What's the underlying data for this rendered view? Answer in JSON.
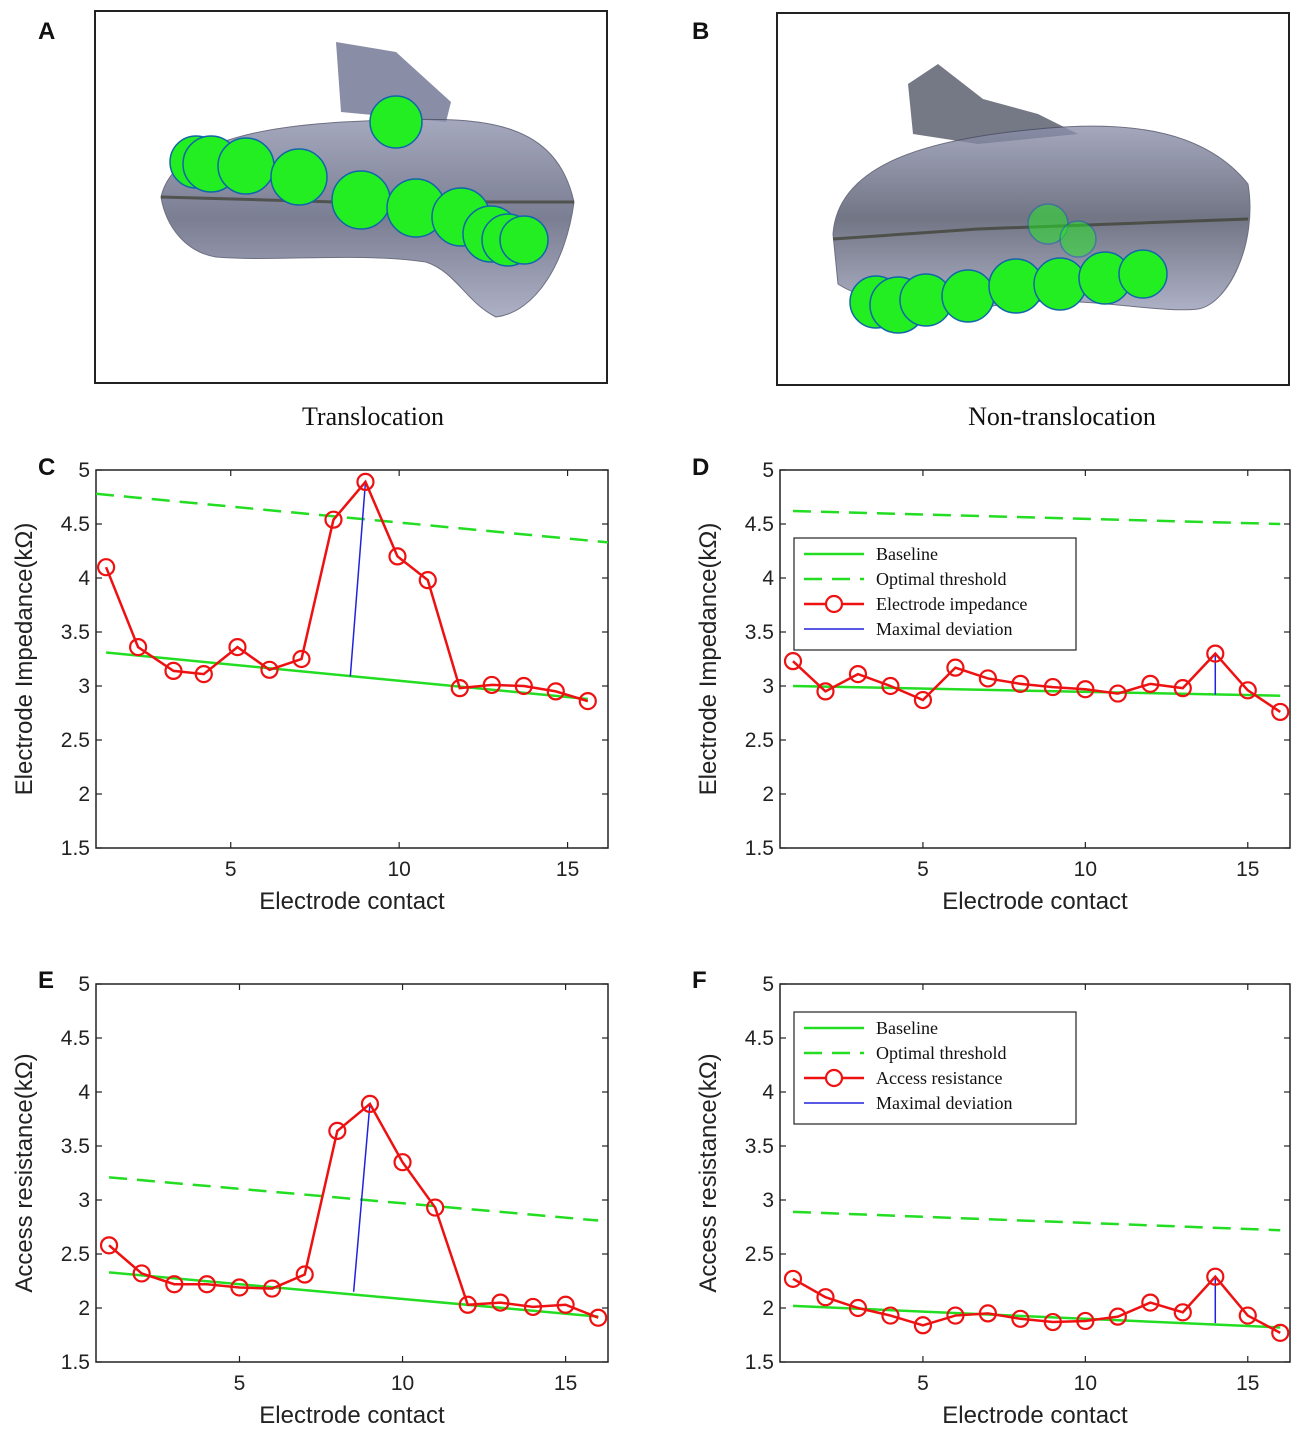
{
  "panels": {
    "A": {
      "letter": "A",
      "caption": "Translocation"
    },
    "B": {
      "letter": "B",
      "caption": "Non-translocation"
    }
  },
  "colors": {
    "baseline": "#22dd22",
    "threshold": "#22dd22",
    "measured": "#ee1111",
    "deviation": "#2222dd",
    "electrode_fill": "#22ee22",
    "electrode_edge": "#1166aa",
    "cochlea": "#6f7390"
  },
  "chart_data": [
    {
      "id": "C",
      "letter": "C",
      "type": "line",
      "xlabel": "Electrode contact",
      "ylabel": "Electrode Impedance(kΩ)",
      "xlim": [
        1,
        16.2
      ],
      "ylim": [
        1.5,
        5
      ],
      "xticks": [
        5,
        10,
        15
      ],
      "yticks": [
        1.5,
        2,
        2.5,
        3,
        3.5,
        4,
        4.5,
        5
      ],
      "x": [
        1.3,
        2.25,
        3.3,
        4.2,
        5.2,
        6.15,
        7.1,
        8.05,
        9.0,
        9.95,
        10.85,
        11.8,
        12.75,
        13.7,
        14.65,
        15.6
      ],
      "series": [
        {
          "name": "Electrode impedance",
          "values": [
            4.1,
            3.36,
            3.14,
            3.11,
            3.36,
            3.15,
            3.25,
            4.54,
            4.89,
            4.2,
            3.98,
            2.98,
            3.01,
            3.0,
            2.95,
            2.86
          ]
        }
      ],
      "baseline": {
        "x": [
          1.3,
          15.6
        ],
        "y": [
          3.31,
          2.88
        ]
      },
      "threshold": {
        "x": [
          1.0,
          16.2
        ],
        "y": [
          4.78,
          4.33
        ]
      },
      "deviation": {
        "x": [
          8.55,
          9.0
        ],
        "y": [
          3.09,
          4.89
        ]
      },
      "legend": null
    },
    {
      "id": "D",
      "letter": "D",
      "type": "line",
      "xlabel": "Electrode contact",
      "ylabel": "Electrode Impedance(kΩ)",
      "xlim": [
        0.6,
        16.3
      ],
      "ylim": [
        1.5,
        5
      ],
      "xticks": [
        5,
        10,
        15
      ],
      "yticks": [
        1.5,
        2,
        2.5,
        3,
        3.5,
        4,
        4.5,
        5
      ],
      "x": [
        1,
        2,
        3,
        4,
        5,
        6,
        7,
        8,
        9,
        10,
        11,
        12,
        13,
        14,
        15,
        16
      ],
      "series": [
        {
          "name": "Electrode impedance",
          "values": [
            3.23,
            2.95,
            3.11,
            3.0,
            2.87,
            3.17,
            3.07,
            3.02,
            2.99,
            2.97,
            2.93,
            3.02,
            2.98,
            3.3,
            2.96,
            2.76
          ]
        }
      ],
      "baseline": {
        "x": [
          1,
          16
        ],
        "y": [
          3.0,
          2.91
        ]
      },
      "threshold": {
        "x": [
          1,
          16
        ],
        "y": [
          4.62,
          4.5
        ]
      },
      "deviation": {
        "x": [
          14,
          14
        ],
        "y": [
          2.92,
          3.3
        ]
      },
      "legend": {
        "placement": "upper-left",
        "entries": [
          "Baseline",
          "Optimal threshold",
          "Electrode impedance",
          "Maximal deviation"
        ]
      }
    },
    {
      "id": "E",
      "letter": "E",
      "type": "line",
      "xlabel": "Electrode contact",
      "ylabel": "Access resistance(kΩ)",
      "xlim": [
        0.6,
        16.3
      ],
      "ylim": [
        1.5,
        5
      ],
      "xticks": [
        5,
        10,
        15
      ],
      "yticks": [
        1.5,
        2,
        2.5,
        3,
        3.5,
        4,
        4.5,
        5
      ],
      "x": [
        1,
        2,
        3,
        4,
        5,
        6,
        7,
        8,
        9,
        10,
        11,
        12,
        13,
        14,
        15,
        16
      ],
      "series": [
        {
          "name": "Access resistance",
          "values": [
            2.58,
            2.32,
            2.22,
            2.22,
            2.19,
            2.18,
            2.31,
            3.64,
            3.89,
            3.35,
            2.93,
            2.03,
            2.05,
            2.01,
            2.03,
            1.91
          ]
        }
      ],
      "baseline": {
        "x": [
          1,
          16
        ],
        "y": [
          2.33,
          1.92
        ]
      },
      "threshold": {
        "x": [
          1,
          16
        ],
        "y": [
          3.21,
          2.81
        ]
      },
      "deviation": {
        "x": [
          8.5,
          9.0
        ],
        "y": [
          2.15,
          3.89
        ]
      },
      "legend": null
    },
    {
      "id": "F",
      "letter": "F",
      "type": "line",
      "xlabel": "Electrode contact",
      "ylabel": "Access resistance(kΩ)",
      "xlim": [
        0.6,
        16.3
      ],
      "ylim": [
        1.5,
        5
      ],
      "xticks": [
        5,
        10,
        15
      ],
      "yticks": [
        1.5,
        2,
        2.5,
        3,
        3.5,
        4,
        4.5,
        5
      ],
      "x": [
        1,
        2,
        3,
        4,
        5,
        6,
        7,
        8,
        9,
        10,
        11,
        12,
        13,
        14,
        15,
        16
      ],
      "series": [
        {
          "name": "Access resistance",
          "values": [
            2.27,
            2.1,
            2.0,
            1.93,
            1.84,
            1.93,
            1.95,
            1.9,
            1.87,
            1.88,
            1.92,
            2.05,
            1.96,
            2.29,
            1.93,
            1.77
          ]
        }
      ],
      "baseline": {
        "x": [
          1,
          16
        ],
        "y": [
          2.02,
          1.82
        ]
      },
      "threshold": {
        "x": [
          1,
          16
        ],
        "y": [
          2.89,
          2.72
        ]
      },
      "deviation": {
        "x": [
          14,
          14
        ],
        "y": [
          1.86,
          2.29
        ]
      },
      "legend": {
        "placement": "upper-left",
        "entries": [
          "Baseline",
          "Optimal threshold",
          "Access resistance",
          "Maximal deviation"
        ]
      }
    }
  ]
}
